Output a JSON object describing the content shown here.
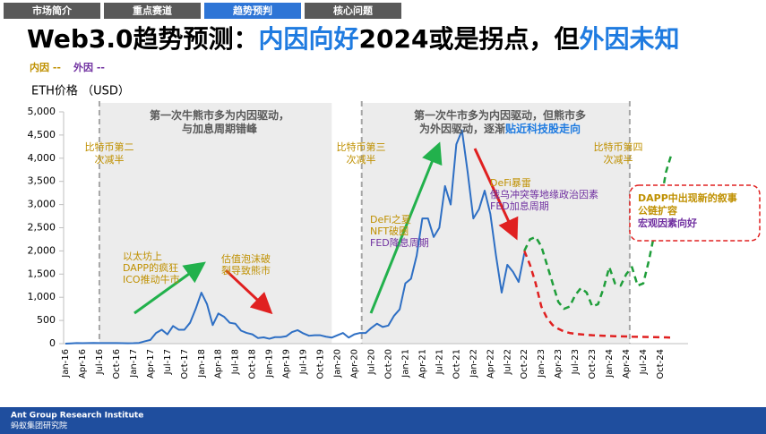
{
  "tabs": [
    "市场简介",
    "重点赛道",
    "趋势预判",
    "核心问题"
  ],
  "title": {
    "prefix": "Web3.0趋势预测：",
    "highlight1": "内因向好",
    "middle": "2024或是拐点，但",
    "highlight2": "外因未知"
  },
  "legend": {
    "internal": "内因 --",
    "external": "外因 --"
  },
  "footer": {
    "org": "Ant Group Research Institute",
    "org_cn": "蚂蚁集团研究院"
  },
  "chart_data": {
    "type": "line",
    "y_label": "ETH价格 （USD）",
    "categories": [
      "Jan-16",
      null,
      null,
      "Apr-16",
      null,
      null,
      "Jul-16",
      null,
      null,
      "Oct-16",
      null,
      null,
      "Jan-17",
      null,
      null,
      "Apr-17",
      null,
      null,
      "Jul-17",
      null,
      null,
      "Oct-17",
      null,
      null,
      "Jan-18",
      null,
      null,
      "Apr-18",
      null,
      null,
      "Jul-18",
      null,
      null,
      "Oct-18",
      null,
      null,
      "Jan-19",
      null,
      null,
      "Apr-19",
      null,
      null,
      "Jul-19",
      null,
      null,
      "Oct-19",
      null,
      null,
      "Jan-20",
      null,
      null,
      "Apr-20",
      null,
      null,
      "Jul-20",
      null,
      null,
      "Oct-20",
      null,
      null,
      "Jan-21",
      null,
      null,
      "Apr-21",
      null,
      null,
      "Jul-21",
      null,
      null,
      "Oct-21",
      null,
      null,
      "Jan-22",
      null,
      null,
      "Apr-22",
      null,
      null,
      "Jul-22",
      null,
      null,
      "Oct-22",
      null,
      null,
      "Jan-23",
      null,
      null,
      "Apr-23",
      null,
      null,
      "Jul-23",
      null,
      null,
      "Oct-23",
      null,
      null,
      "Jan-24",
      null,
      null,
      "Apr-24",
      null,
      null,
      "Jul-24",
      null,
      null,
      "Oct-24",
      null,
      null
    ],
    "series": [
      {
        "color": "#2e6fc4",
        "dash": false,
        "values": [
          1,
          6,
          11,
          9,
          12,
          14,
          12,
          11,
          13,
          11,
          9,
          8,
          10,
          15,
          50,
          80,
          230,
          300,
          200,
          380,
          300,
          300,
          450,
          750,
          1100,
          850,
          400,
          650,
          580,
          450,
          430,
          280,
          230,
          200,
          120,
          135,
          105,
          140,
          140,
          160,
          250,
          290,
          220,
          170,
          180,
          180,
          150,
          130,
          180,
          230,
          130,
          200,
          230,
          230,
          340,
          430,
          360,
          390,
          600,
          740,
          1300,
          1400,
          1900,
          2700,
          2700,
          2300,
          2500,
          3400,
          3000,
          4300,
          4600,
          3700,
          2700,
          2900,
          3300,
          2800,
          1900,
          1100,
          1700,
          1550,
          1330,
          1950,
          null,
          null,
          null,
          null,
          null,
          null,
          null,
          null,
          null,
          null,
          null,
          null,
          null,
          null,
          null,
          null,
          null,
          null,
          null,
          null,
          null,
          null,
          null,
          null,
          null,
          null
        ]
      },
      {
        "color": "#1f9e3a",
        "dash": true,
        "values": [
          null,
          null,
          null,
          null,
          null,
          null,
          null,
          null,
          null,
          null,
          null,
          null,
          null,
          null,
          null,
          null,
          null,
          null,
          null,
          null,
          null,
          null,
          null,
          null,
          null,
          null,
          null,
          null,
          null,
          null,
          null,
          null,
          null,
          null,
          null,
          null,
          null,
          null,
          null,
          null,
          null,
          null,
          null,
          null,
          null,
          null,
          null,
          null,
          null,
          null,
          null,
          null,
          null,
          null,
          null,
          null,
          null,
          null,
          null,
          null,
          null,
          null,
          null,
          null,
          null,
          null,
          null,
          null,
          null,
          null,
          null,
          null,
          null,
          null,
          null,
          null,
          null,
          null,
          null,
          null,
          null,
          2000,
          2250,
          2300,
          2100,
          1700,
          1300,
          900,
          750,
          800,
          1050,
          1200,
          1100,
          800,
          850,
          1200,
          1650,
          1300,
          1250,
          1500,
          1650,
          1250,
          1300,
          1800,
          2400,
          3000,
          3700,
          4100
        ]
      },
      {
        "color": "#e02020",
        "dash": true,
        "values": [
          null,
          null,
          null,
          null,
          null,
          null,
          null,
          null,
          null,
          null,
          null,
          null,
          null,
          null,
          null,
          null,
          null,
          null,
          null,
          null,
          null,
          null,
          null,
          null,
          null,
          null,
          null,
          null,
          null,
          null,
          null,
          null,
          null,
          null,
          null,
          null,
          null,
          null,
          null,
          null,
          null,
          null,
          null,
          null,
          null,
          null,
          null,
          null,
          null,
          null,
          null,
          null,
          null,
          null,
          null,
          null,
          null,
          null,
          null,
          null,
          null,
          null,
          null,
          null,
          null,
          null,
          null,
          null,
          null,
          null,
          null,
          null,
          null,
          null,
          null,
          null,
          null,
          null,
          null,
          null,
          null,
          2000,
          1700,
          1300,
          800,
          550,
          400,
          320,
          260,
          230,
          210,
          200,
          190,
          180,
          175,
          170,
          165,
          160,
          158,
          155,
          150,
          148,
          145,
          142,
          140,
          138,
          135,
          130
        ]
      }
    ],
    "ylim": [
      0,
      5000
    ],
    "yticks": [
      0,
      500,
      {
        "value": 1000,
        "label": "1,000"
      },
      {
        "value": 1500,
        "label": "1,500"
      },
      {
        "value": 2000,
        "label": "2,000"
      },
      {
        "value": 2500,
        "label": "2,500"
      },
      {
        "value": 3000,
        "label": "3,000"
      },
      {
        "value": 3500,
        "label": "3,500"
      },
      {
        "value": 4000,
        "label": "4,000"
      },
      {
        "value": 4500,
        "label": "4,500"
      },
      {
        "value": 5000,
        "label": "5,000"
      }
    ],
    "annotations": [
      {
        "lines": [
          [
            {
              "text": "第一次牛熊市多为内因驱动，",
              "color": "#595959"
            }
          ],
          [
            {
              "text": "与加息周期错峰",
              "color": "#595959"
            }
          ]
        ]
      },
      {
        "lines": [
          [
            {
              "text": "第一次牛市多为内因驱动，但熊市多",
              "color": "#595959"
            }
          ],
          [
            {
              "text": "为外因驱动，逐渐",
              "color": "#595959"
            },
            {
              "text": "贴近科技股走向",
              "color": "#1f7be0"
            }
          ]
        ]
      },
      {
        "lines": [
          [
            {
              "text": "比特币第二",
              "color": "#bf9000"
            }
          ],
          [
            {
              "text": "次减半",
              "color": "#bf9000"
            }
          ]
        ]
      },
      {
        "lines": [
          [
            {
              "text": "比特币第三",
              "color": "#bf9000"
            }
          ],
          [
            {
              "text": "次减半",
              "color": "#bf9000"
            }
          ]
        ]
      },
      {
        "lines": [
          [
            {
              "text": "比特币第四",
              "color": "#bf9000"
            }
          ],
          [
            {
              "text": "次减半",
              "color": "#bf9000"
            }
          ]
        ]
      },
      {
        "lines": [
          [
            {
              "text": "以太坊上",
              "color": "#bf9000"
            }
          ],
          [
            {
              "text": "DAPP的疯狂",
              "color": "#bf9000"
            }
          ],
          [
            {
              "text": "ICO推动牛市",
              "color": "#bf9000"
            }
          ]
        ]
      },
      {
        "lines": [
          [
            {
              "text": "估值泡沫破",
              "color": "#bf9000"
            }
          ],
          [
            {
              "text": "裂导致熊市",
              "color": "#bf9000"
            }
          ]
        ]
      },
      {
        "lines": [
          [
            {
              "text": "DeFi之夏",
              "color": "#bf9000"
            }
          ],
          [
            {
              "text": "NFT破圈",
              "color": "#bf9000"
            }
          ],
          [
            {
              "text": "FED降息周期",
              "color": "#7030a0"
            }
          ]
        ]
      },
      {
        "lines": [
          [
            {
              "text": "DeFi暴雷",
              "color": "#bf9000"
            }
          ],
          [
            {
              "text": "俄乌冲突等地缘政治因素",
              "color": "#7030a0"
            }
          ],
          [
            {
              "text": "FED加息周期",
              "color": "#7030a0"
            }
          ]
        ]
      },
      {
        "lines": [
          [
            {
              "text": "DAPP中出现新的叙事",
              "color": "#bf9000"
            }
          ],
          [
            {
              "text": "公链扩容",
              "color": "#bf9000"
            }
          ],
          [
            {
              "text": "宏观因素向好",
              "color": "#7030a0"
            }
          ]
        ]
      }
    ]
  }
}
